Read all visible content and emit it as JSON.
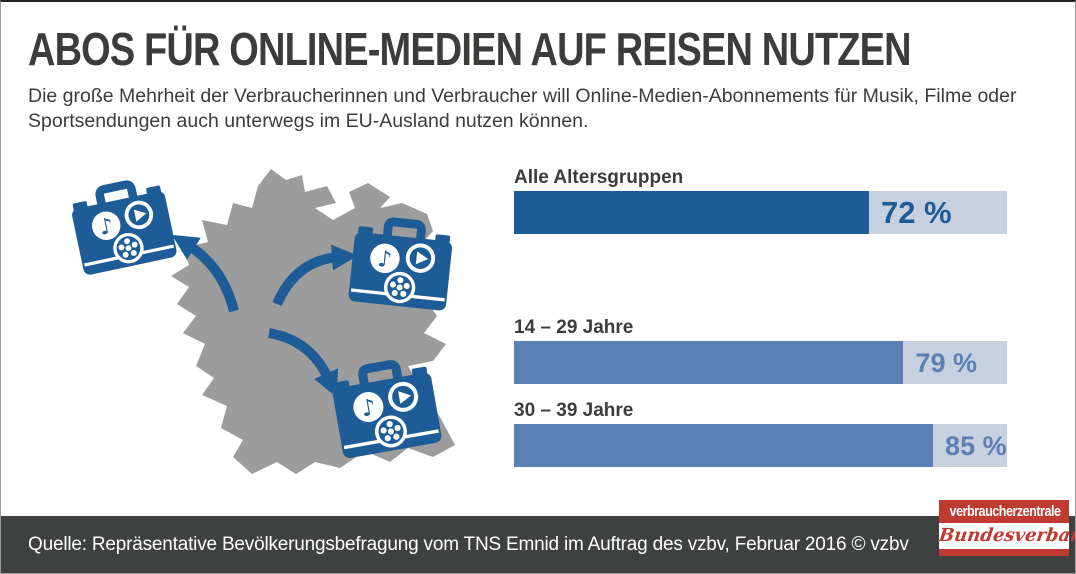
{
  "header": {
    "title": "ABOS FÜR ONLINE-MEDIEN AUF REISEN NUTZEN",
    "subtitle": "Die große Mehrheit der Verbraucherinnen und Verbraucher will Online-Medien-Abonnements für Musik, Filme oder Sportsendungen auch unterwegs im EU-Ausland nutzen können."
  },
  "chart_data": {
    "type": "bar",
    "orientation": "horizontal",
    "categories": [
      "Alle Altersgruppen",
      "14 – 29 Jahre",
      "30 – 39 Jahre"
    ],
    "values": [
      72,
      79,
      85
    ],
    "value_labels": [
      "72 %",
      "79 %",
      "85 %"
    ],
    "xlim": [
      0,
      100
    ],
    "series_colors": [
      "#1d5c96",
      "#5d80b4",
      "#5d80b4"
    ],
    "track_color": "#c7d0df",
    "grid": false,
    "legend": "none"
  },
  "illustration": {
    "map": "germany-map",
    "icons": [
      "music-note-icon",
      "play-icon",
      "film-reel-icon"
    ],
    "music_note_glyph": "♪"
  },
  "footer": {
    "source": "Quelle: Repräsentative Bevölkerungsbefragung vom TNS Emnid im Auftrag des vzbv, Februar 2016 © vzbv"
  },
  "logo": {
    "line1": "verbraucherzentrale",
    "line2": "Bundesverband"
  },
  "colors": {
    "accent_blue": "#1d5c96",
    "mid_blue": "#5d80b4",
    "bar_track": "#c7d0df",
    "map_gray": "#9c9c9c",
    "footer_bg": "#3e4140",
    "logo_red": "#bf3a31",
    "text_dark": "#3c3c3b"
  }
}
